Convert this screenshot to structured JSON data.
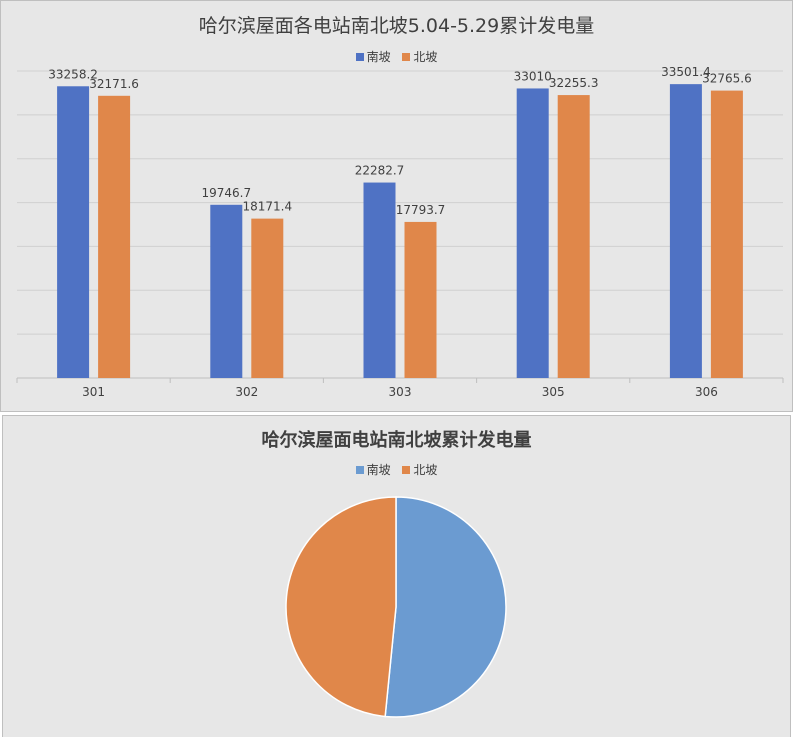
{
  "chart_data": [
    {
      "type": "bar",
      "title": "哈尔滨屋面各电站南北坡5.04-5.29累计发电量",
      "categories": [
        "301",
        "302",
        "303",
        "305",
        "306"
      ],
      "series": [
        {
          "name": "南坡",
          "color": "#4f72c4",
          "values": [
            33258.2,
            19746.7,
            22282.7,
            33010,
            33501.4
          ],
          "labels": [
            "33258.2",
            "19746.7",
            "22282.7",
            "33010",
            "33501.4"
          ]
        },
        {
          "name": "北坡",
          "color": "#e0874a",
          "values": [
            32171.6,
            18171.4,
            17793.7,
            32255.3,
            32765.6
          ],
          "labels": [
            "32171.6",
            "18171.4",
            "17793.7",
            "32255.3",
            "32765.6"
          ]
        }
      ],
      "ylim": [
        0,
        35000
      ],
      "grid": true,
      "legend_position": "top"
    },
    {
      "type": "pie",
      "title": "哈尔滨屋面电站南北坡累计发电量",
      "slices": [
        {
          "name": "南坡",
          "value": 141799.0,
          "color": "#6b9bd1"
        },
        {
          "name": "北坡",
          "value": 133157.6,
          "color": "#e0874a"
        }
      ],
      "legend_position": "top"
    }
  ]
}
